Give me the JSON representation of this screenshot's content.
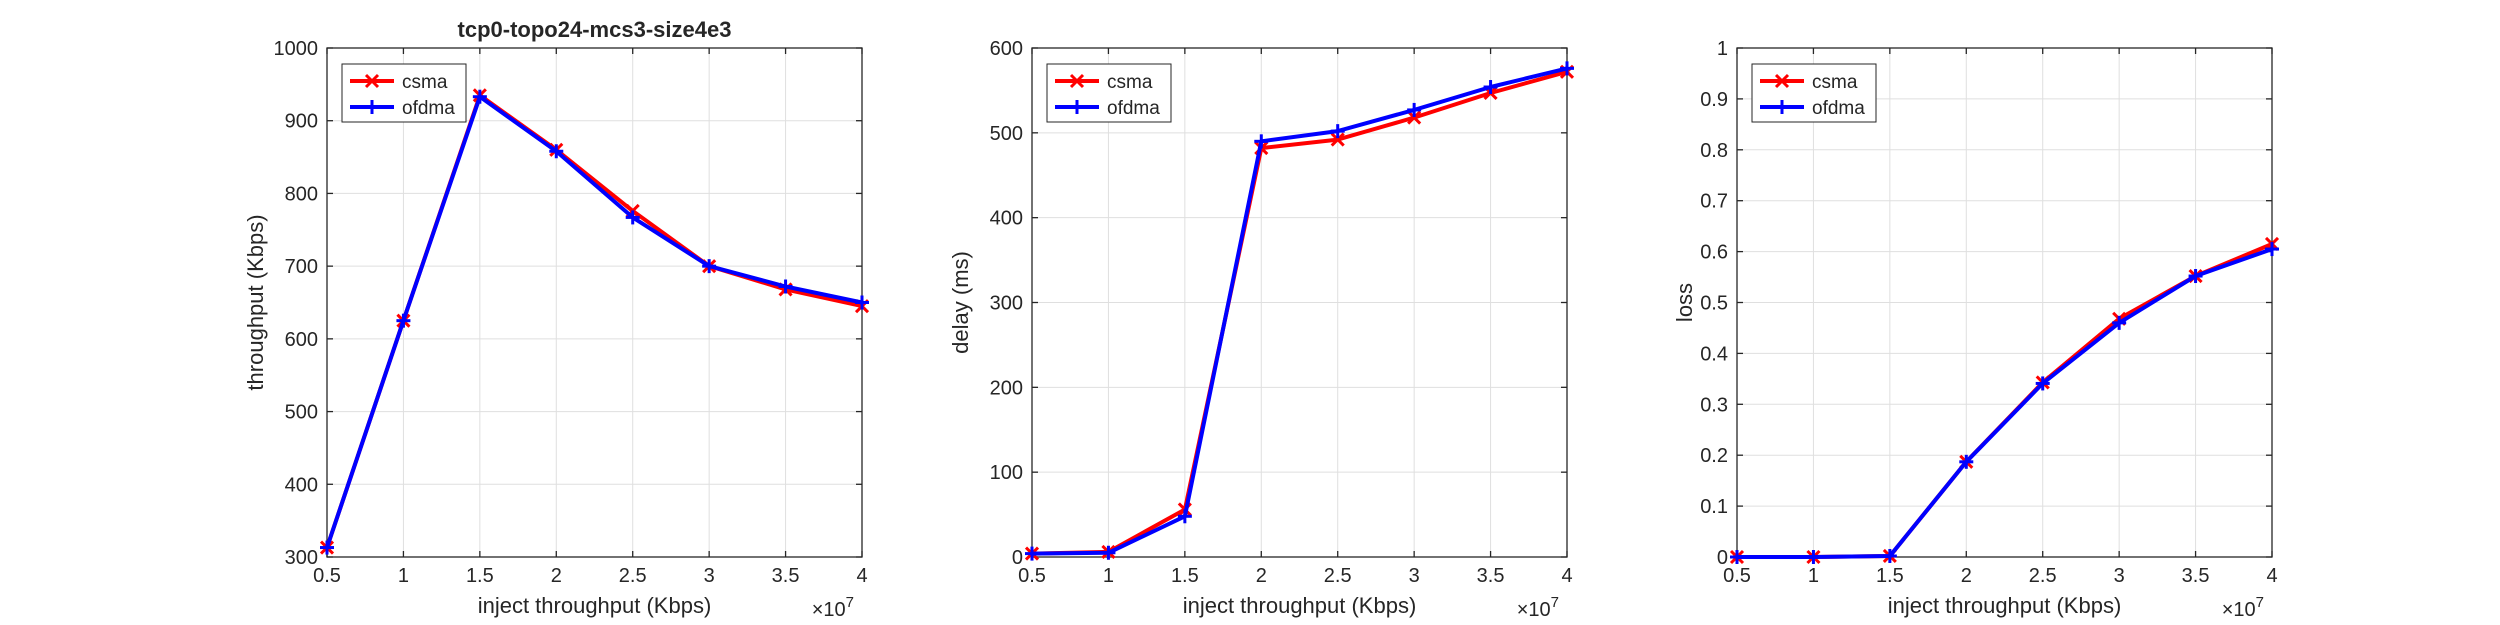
{
  "figure": {
    "background": "#ffffff"
  },
  "series_colors": {
    "csma": "#ff0000",
    "ofdma": "#0000ff"
  },
  "chart_data": [
    {
      "type": "line",
      "title": "tcp0-topo24-mcs3-size4e3",
      "xlabel": "inject throughput (Kbps)",
      "ylabel": "throughput (Kbps)",
      "x_exponent_label": "×10",
      "x_exponent": "7",
      "x": [
        0.5,
        1,
        1.5,
        2,
        2.5,
        3,
        3.5,
        4
      ],
      "xlim": [
        0.5,
        4
      ],
      "ylim": [
        300,
        1000
      ],
      "xticks": [
        "0.5",
        "1",
        "1.5",
        "2",
        "2.5",
        "3",
        "3.5",
        "4"
      ],
      "yticks": [
        "300",
        "400",
        "500",
        "600",
        "700",
        "800",
        "900",
        "1000"
      ],
      "grid": true,
      "legend": "top-left",
      "series": [
        {
          "name": "csma",
          "color": "#ff0000",
          "marker": "x",
          "values": [
            313,
            625,
            935,
            860,
            776,
            700,
            668,
            645
          ]
        },
        {
          "name": "ofdma",
          "color": "#0000ff",
          "marker": "+",
          "values": [
            313,
            625,
            933,
            858,
            767,
            700,
            672,
            650
          ]
        }
      ]
    },
    {
      "type": "line",
      "title": "",
      "xlabel": "inject throughput (Kbps)",
      "ylabel": "delay (ms)",
      "x_exponent_label": "×10",
      "x_exponent": "7",
      "x": [
        0.5,
        1,
        1.5,
        2,
        2.5,
        3,
        3.5,
        4
      ],
      "xlim": [
        0.5,
        4
      ],
      "ylim": [
        0,
        600
      ],
      "xticks": [
        "0.5",
        "1",
        "1.5",
        "2",
        "2.5",
        "3",
        "3.5",
        "4"
      ],
      "yticks": [
        "0",
        "100",
        "200",
        "300",
        "400",
        "500",
        "600"
      ],
      "grid": true,
      "legend": "top-left",
      "series": [
        {
          "name": "csma",
          "color": "#ff0000",
          "marker": "x",
          "values": [
            4,
            6,
            56,
            482,
            492,
            518,
            547,
            572
          ]
        },
        {
          "name": "ofdma",
          "color": "#0000ff",
          "marker": "+",
          "values": [
            4,
            5,
            48,
            490,
            502,
            527,
            554,
            576
          ]
        }
      ]
    },
    {
      "type": "line",
      "title": "",
      "xlabel": "inject throughput (Kbps)",
      "ylabel": "loss",
      "x_exponent_label": "×10",
      "x_exponent": "7",
      "x": [
        0.5,
        1,
        1.5,
        2,
        2.5,
        3,
        3.5,
        4
      ],
      "xlim": [
        0.5,
        4
      ],
      "ylim": [
        0,
        1
      ],
      "xticks": [
        "0.5",
        "1",
        "1.5",
        "2",
        "2.5",
        "3",
        "3.5",
        "4"
      ],
      "yticks": [
        "0",
        "0.1",
        "0.2",
        "0.3",
        "0.4",
        "0.5",
        "0.6",
        "0.7",
        "0.8",
        "0.9",
        "1"
      ],
      "grid": true,
      "legend": "top-left",
      "series": [
        {
          "name": "csma",
          "color": "#ff0000",
          "marker": "x",
          "values": [
            0,
            0,
            0.002,
            0.187,
            0.343,
            0.468,
            0.552,
            0.615
          ]
        },
        {
          "name": "ofdma",
          "color": "#0000ff",
          "marker": "+",
          "values": [
            0,
            0,
            0.002,
            0.187,
            0.341,
            0.46,
            0.552,
            0.605
          ]
        }
      ]
    }
  ]
}
